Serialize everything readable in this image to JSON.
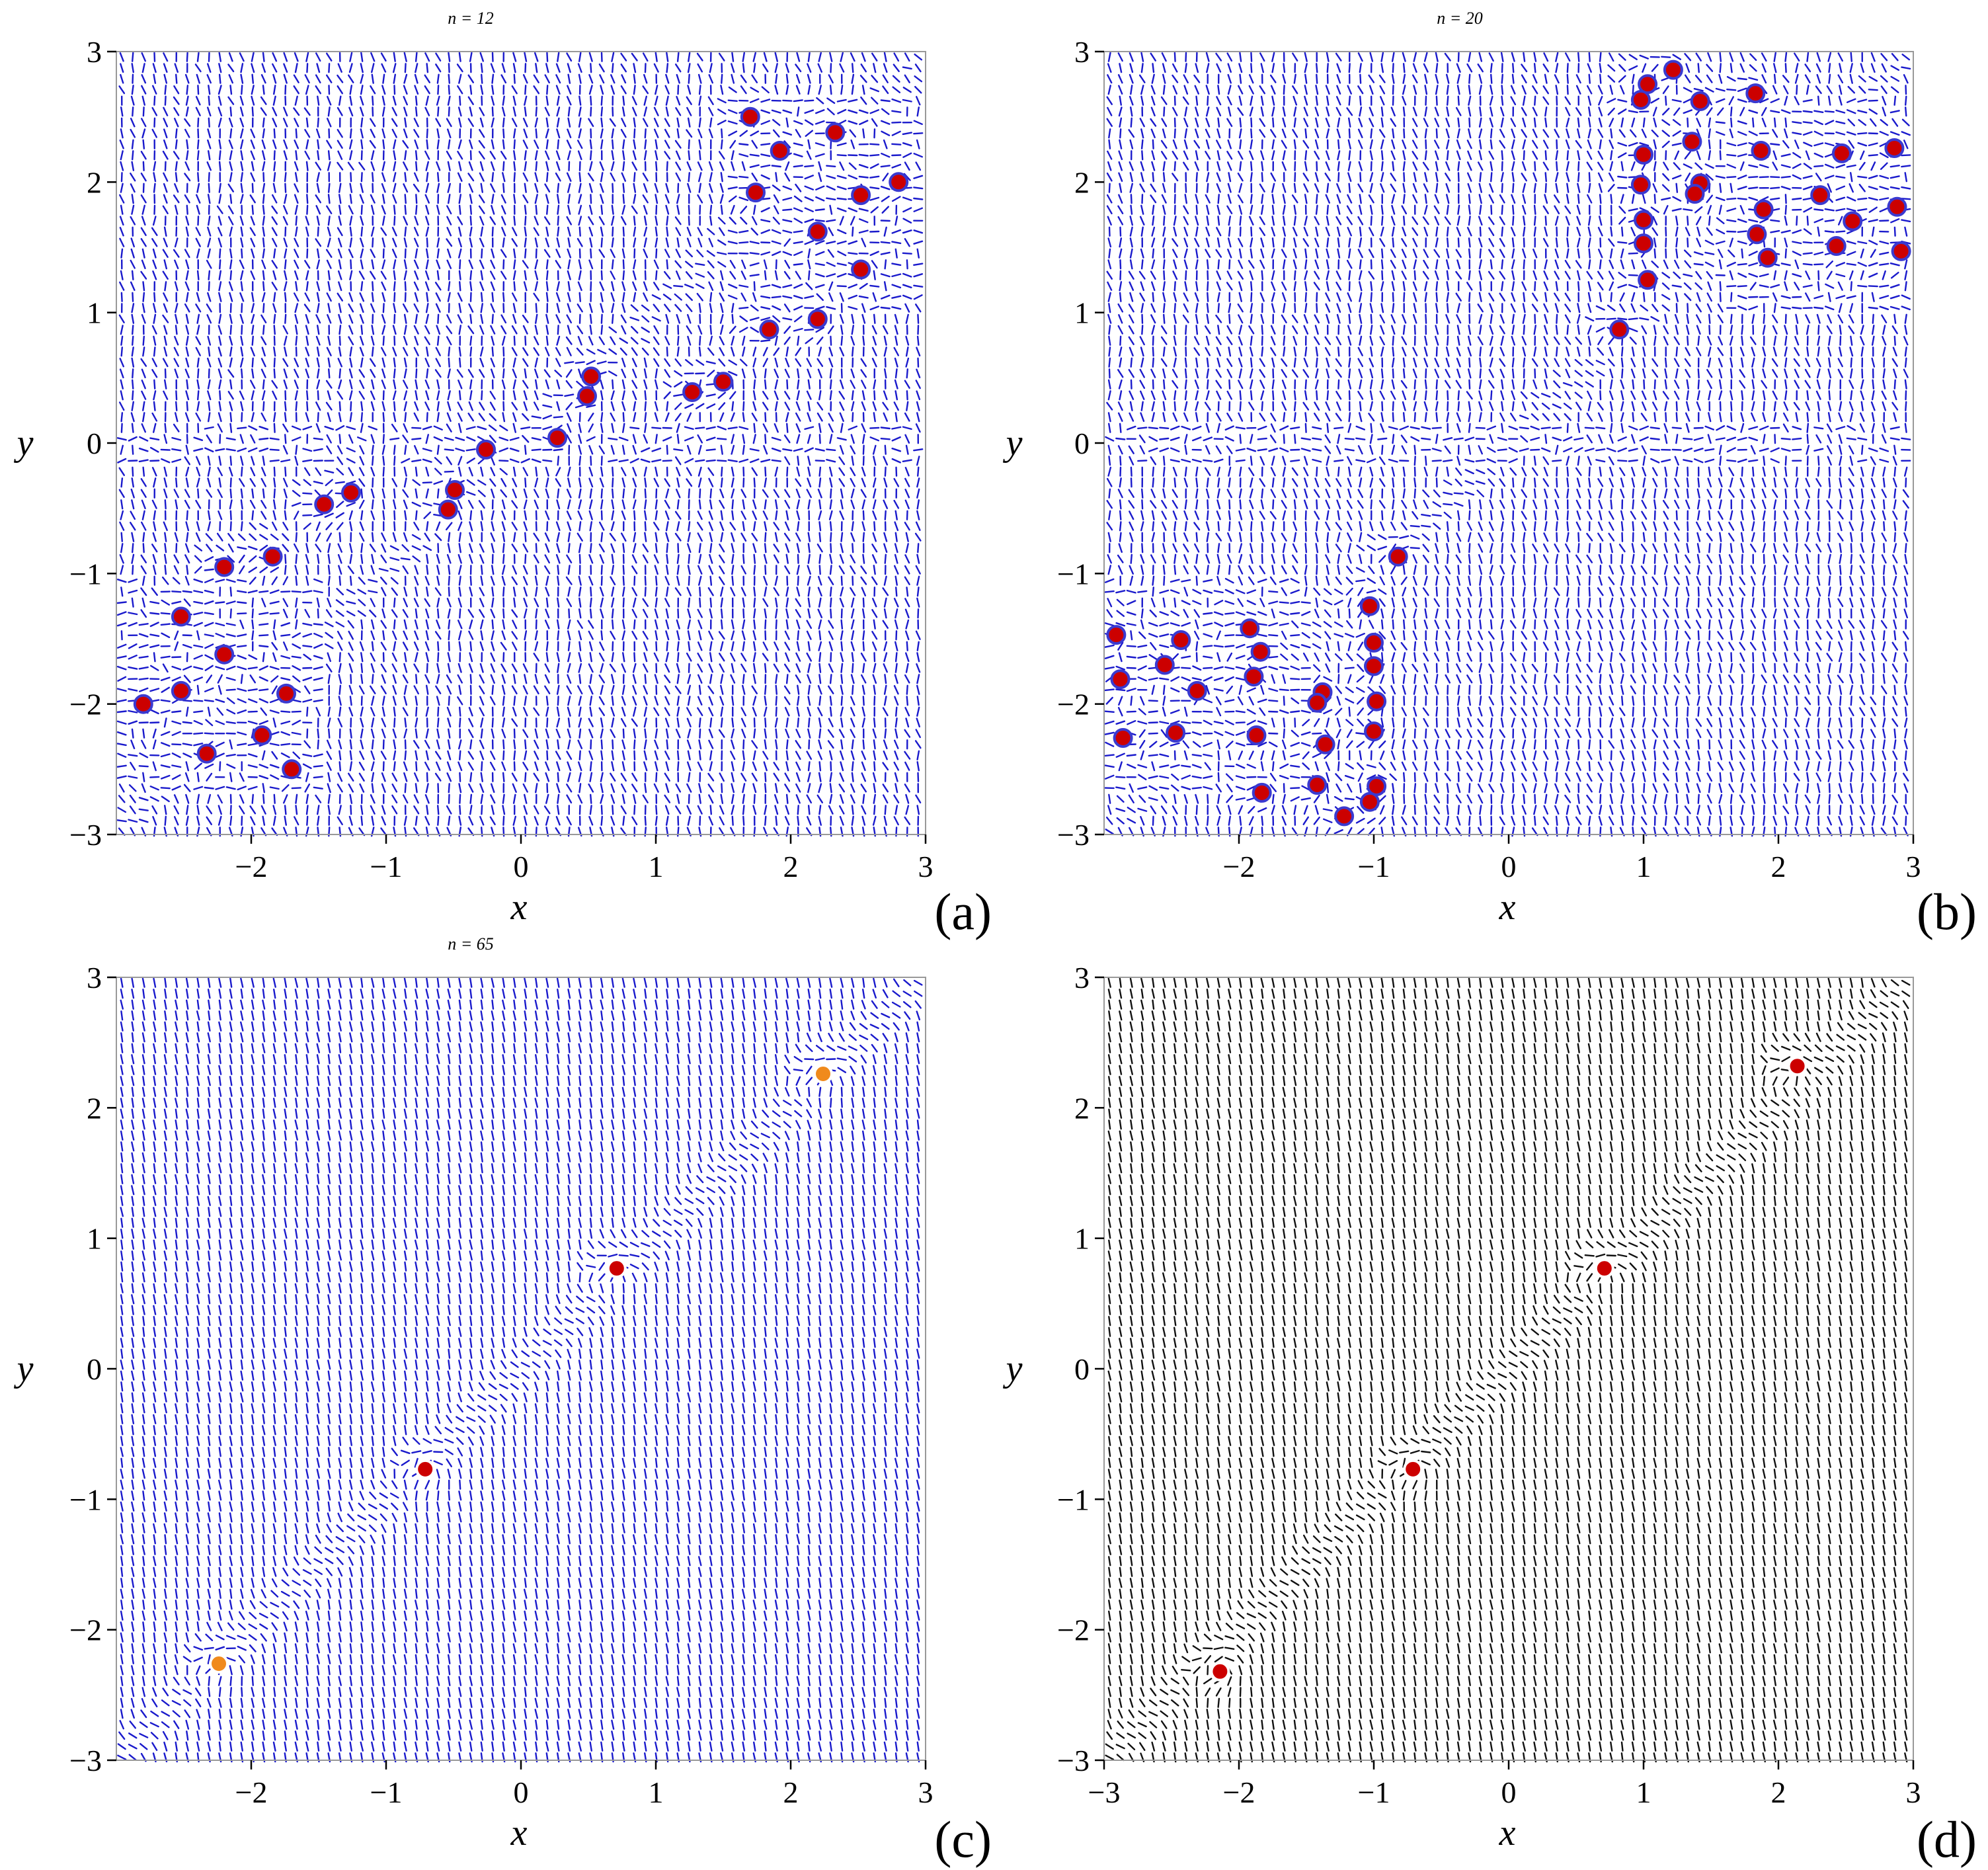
{
  "figure": {
    "panels": [
      "a",
      "b",
      "c",
      "d"
    ]
  },
  "chart_data": [
    {
      "type": "scatter",
      "subtype": "direction-field with marked points",
      "panel_label": "(a)",
      "title": "n = 12",
      "xlabel": "x",
      "ylabel": "y",
      "xlim": [
        -3,
        3
      ],
      "ylim": [
        -3,
        3
      ],
      "xticks": [
        -2,
        -1,
        0,
        1,
        2,
        3
      ],
      "xtick_labels": [
        "−2",
        "−1",
        "0",
        "1",
        "2",
        "3"
      ],
      "yticks": [
        -3,
        -2,
        -1,
        0,
        1,
        2,
        3
      ],
      "ytick_labels": [
        "−3",
        "−2",
        "−1",
        "0",
        "1",
        "2",
        "3"
      ],
      "field_color": "#1a1acc",
      "field_pattern": "noisy",
      "point_color": "#cc0000",
      "point_edge": "#3a3ad0",
      "points": [
        {
          "x": 1.7,
          "y": 2.5
        },
        {
          "x": 2.33,
          "y": 2.38
        },
        {
          "x": 1.92,
          "y": 2.24
        },
        {
          "x": 1.74,
          "y": 1.92
        },
        {
          "x": 2.52,
          "y": 1.9
        },
        {
          "x": 2.8,
          "y": 2.0
        },
        {
          "x": 2.2,
          "y": 1.62
        },
        {
          "x": 2.52,
          "y": 1.33
        },
        {
          "x": 1.84,
          "y": 0.87
        },
        {
          "x": 2.2,
          "y": 0.95
        },
        {
          "x": 1.27,
          "y": 0.39
        },
        {
          "x": 1.5,
          "y": 0.47
        },
        {
          "x": 0.52,
          "y": 0.51
        },
        {
          "x": 0.49,
          "y": 0.36
        },
        {
          "x": 0.27,
          "y": 0.04
        },
        {
          "x": -0.26,
          "y": -0.05
        },
        {
          "x": -0.49,
          "y": -0.36
        },
        {
          "x": -0.54,
          "y": -0.51
        },
        {
          "x": -1.26,
          "y": -0.38
        },
        {
          "x": -1.46,
          "y": -0.47
        },
        {
          "x": -1.84,
          "y": -0.87
        },
        {
          "x": -2.2,
          "y": -0.95
        },
        {
          "x": -2.52,
          "y": -1.33
        },
        {
          "x": -2.2,
          "y": -1.62
        },
        {
          "x": -2.52,
          "y": -1.9
        },
        {
          "x": -1.74,
          "y": -1.92
        },
        {
          "x": -2.8,
          "y": -2.0
        },
        {
          "x": -1.92,
          "y": -2.24
        },
        {
          "x": -2.33,
          "y": -2.38
        },
        {
          "x": -1.7,
          "y": -2.5
        }
      ]
    },
    {
      "type": "scatter",
      "subtype": "direction-field with marked points",
      "panel_label": "(b)",
      "title": "n = 20",
      "xlabel": "x",
      "ylabel": "y",
      "xlim": [
        -3,
        3
      ],
      "ylim": [
        -3,
        3
      ],
      "xticks": [
        -2,
        -1,
        0,
        1,
        2,
        3
      ],
      "xtick_labels": [
        "−2",
        "−1",
        "0",
        "1",
        "2",
        "3"
      ],
      "yticks": [
        -3,
        -2,
        -1,
        0,
        1,
        2,
        3
      ],
      "ytick_labels": [
        "−3",
        "−2",
        "−1",
        "0",
        "1",
        "2",
        "3"
      ],
      "field_color": "#1a1acc",
      "field_pattern": "noisy",
      "point_color": "#cc0000",
      "point_edge": "#3a3ad0",
      "points": [
        {
          "x": 1.22,
          "y": 2.86
        },
        {
          "x": 1.03,
          "y": 2.75
        },
        {
          "x": 0.98,
          "y": 2.63
        },
        {
          "x": 1.42,
          "y": 2.62
        },
        {
          "x": 1.83,
          "y": 2.68
        },
        {
          "x": 1.0,
          "y": 2.21
        },
        {
          "x": 1.36,
          "y": 2.31
        },
        {
          "x": 1.87,
          "y": 2.24
        },
        {
          "x": 2.47,
          "y": 2.22
        },
        {
          "x": 2.86,
          "y": 2.26
        },
        {
          "x": 0.98,
          "y": 1.98
        },
        {
          "x": 1.42,
          "y": 1.99
        },
        {
          "x": 1.38,
          "y": 1.91
        },
        {
          "x": 2.31,
          "y": 1.9
        },
        {
          "x": 1.0,
          "y": 1.71
        },
        {
          "x": 1.89,
          "y": 1.79
        },
        {
          "x": 2.88,
          "y": 1.81
        },
        {
          "x": 2.55,
          "y": 1.7
        },
        {
          "x": 1.0,
          "y": 1.53
        },
        {
          "x": 1.84,
          "y": 1.6
        },
        {
          "x": 2.43,
          "y": 1.51
        },
        {
          "x": 1.92,
          "y": 1.42
        },
        {
          "x": 2.91,
          "y": 1.47
        },
        {
          "x": 1.03,
          "y": 1.25
        },
        {
          "x": 0.82,
          "y": 0.87
        },
        {
          "x": -0.82,
          "y": -0.87
        },
        {
          "x": -1.03,
          "y": -1.25
        },
        {
          "x": -2.91,
          "y": -1.47
        },
        {
          "x": -1.92,
          "y": -1.42
        },
        {
          "x": -2.43,
          "y": -1.51
        },
        {
          "x": -1.0,
          "y": -1.53
        },
        {
          "x": -1.84,
          "y": -1.6
        },
        {
          "x": -2.55,
          "y": -1.7
        },
        {
          "x": -2.88,
          "y": -1.81
        },
        {
          "x": -1.89,
          "y": -1.79
        },
        {
          "x": -1.0,
          "y": -1.71
        },
        {
          "x": -2.31,
          "y": -1.9
        },
        {
          "x": -1.38,
          "y": -1.91
        },
        {
          "x": -1.42,
          "y": -1.99
        },
        {
          "x": -0.98,
          "y": -1.98
        },
        {
          "x": -2.86,
          "y": -2.26
        },
        {
          "x": -2.47,
          "y": -2.22
        },
        {
          "x": -1.87,
          "y": -2.24
        },
        {
          "x": -1.36,
          "y": -2.31
        },
        {
          "x": -1.0,
          "y": -2.21
        },
        {
          "x": -1.83,
          "y": -2.68
        },
        {
          "x": -1.42,
          "y": -2.62
        },
        {
          "x": -0.98,
          "y": -2.63
        },
        {
          "x": -1.03,
          "y": -2.75
        },
        {
          "x": -1.22,
          "y": -2.86
        }
      ]
    },
    {
      "type": "scatter",
      "subtype": "direction-field with marked points",
      "panel_label": "(c)",
      "title": "n = 65",
      "xlabel": "x",
      "ylabel": "y",
      "xlim": [
        -3,
        3
      ],
      "ylim": [
        -3,
        3
      ],
      "xticks": [
        -2,
        -1,
        0,
        1,
        2,
        3
      ],
      "xtick_labels": [
        "−2",
        "−1",
        "0",
        "1",
        "2",
        "3"
      ],
      "yticks": [
        -3,
        -2,
        -1,
        0,
        1,
        2,
        3
      ],
      "ytick_labels": [
        "−3",
        "−2",
        "−1",
        "0",
        "1",
        "2",
        "3"
      ],
      "field_color": "#1a1acc",
      "field_pattern": "smooth",
      "point_color": "#cc0000",
      "point_edge": "#ffffff",
      "points": [
        {
          "x": 2.24,
          "y": 2.26,
          "color": "#f08a1c"
        },
        {
          "x": 0.71,
          "y": 0.77
        },
        {
          "x": -0.71,
          "y": -0.77
        },
        {
          "x": -2.24,
          "y": -2.26,
          "color": "#f08a1c"
        }
      ]
    },
    {
      "type": "scatter",
      "subtype": "direction-field with marked points",
      "panel_label": "(d)",
      "title": "",
      "xlabel": "x",
      "ylabel": "y",
      "xlim": [
        -3,
        3
      ],
      "ylim": [
        -3,
        3
      ],
      "xticks": [
        -3,
        -2,
        -1,
        0,
        1,
        2,
        3
      ],
      "xtick_labels": [
        "−3",
        "−2",
        "−1",
        "0",
        "1",
        "2",
        "3"
      ],
      "yticks": [
        -3,
        -2,
        -1,
        0,
        1,
        2,
        3
      ],
      "ytick_labels": [
        "−3",
        "−2",
        "−1",
        "0",
        "1",
        "2",
        "3"
      ],
      "field_color": "#111111",
      "field_pattern": "smooth",
      "point_color": "#cc0000",
      "point_edge": "#ffffff",
      "points": [
        {
          "x": 2.14,
          "y": 2.32
        },
        {
          "x": 0.71,
          "y": 0.77
        },
        {
          "x": -0.71,
          "y": -0.77
        },
        {
          "x": -2.14,
          "y": -2.32
        }
      ]
    }
  ]
}
